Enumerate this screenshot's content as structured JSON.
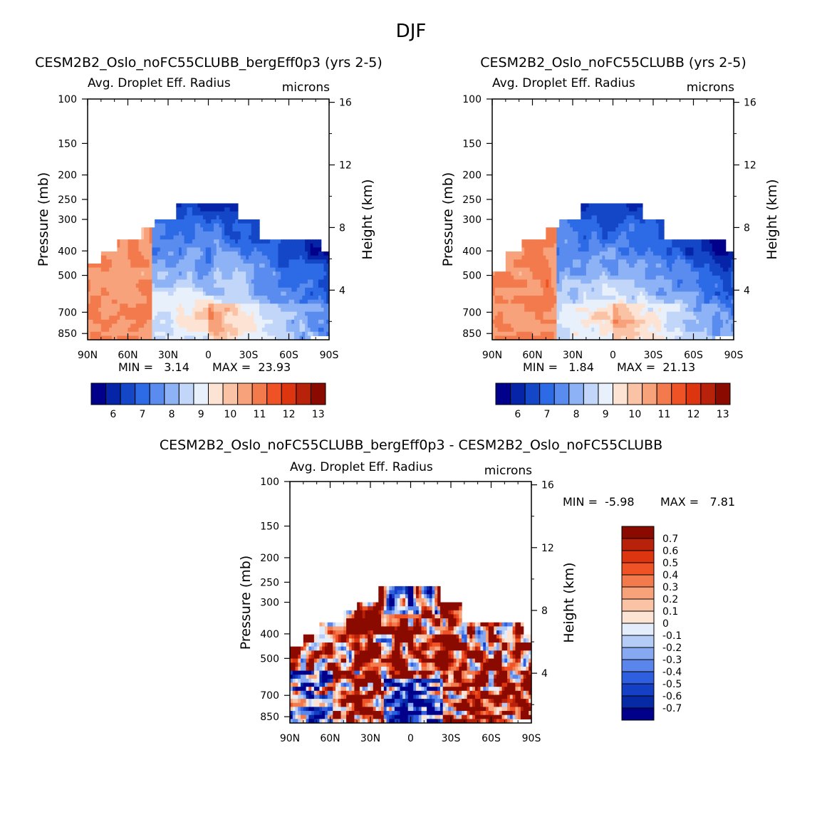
{
  "page_title": "DJF",
  "chart_data": [
    {
      "type": "heatmap",
      "title": "CESM2B2_Oslo_noFC55CLUBB_bergEff0p3 (yrs 2-5)",
      "subtitle_left": "Avg. Droplet Eff. Radius",
      "subtitle_right": "microns",
      "xlabel": "",
      "ylabel_left": "Pressure (mb)",
      "ylabel_right": "Height (km)",
      "x_tick_labels": [
        "90N",
        "60N",
        "30N",
        "0",
        "30S",
        "60S",
        "90S"
      ],
      "x_ticks": [
        90,
        60,
        30,
        0,
        -30,
        -60,
        -90
      ],
      "y_tick_labels": [
        "100",
        "150",
        "200",
        "250",
        "300",
        "400",
        "500",
        "700",
        "850"
      ],
      "y_ticks": [
        100,
        150,
        200,
        250,
        300,
        400,
        500,
        700,
        850
      ],
      "ylim": [
        100,
        1000
      ],
      "height_tick_labels": [
        "16",
        "12",
        "8",
        "4"
      ],
      "min_text": "MIN =   3.14",
      "max_text": "MAX =  23.93",
      "min": 3.14,
      "max": 23.93,
      "colorbar_labels": [
        "6",
        "7",
        "8",
        "9",
        "10",
        "11",
        "12",
        "13"
      ],
      "colorbar_levels": [
        6,
        7,
        8,
        9,
        10,
        11,
        12,
        13
      ],
      "colorbar_orientation": "horizontal"
    },
    {
      "type": "heatmap",
      "title": "CESM2B2_Oslo_noFC55CLUBB (yrs 2-5)",
      "subtitle_left": "Avg. Droplet Eff. Radius",
      "subtitle_right": "microns",
      "xlabel": "",
      "ylabel_left": "Pressure (mb)",
      "ylabel_right": "Height (km)",
      "x_tick_labels": [
        "90N",
        "60N",
        "30N",
        "0",
        "30S",
        "60S",
        "90S"
      ],
      "x_ticks": [
        90,
        60,
        30,
        0,
        -30,
        -60,
        -90
      ],
      "y_tick_labels": [
        "100",
        "150",
        "200",
        "250",
        "300",
        "400",
        "500",
        "700",
        "850"
      ],
      "y_ticks": [
        100,
        150,
        200,
        250,
        300,
        400,
        500,
        700,
        850
      ],
      "ylim": [
        100,
        1000
      ],
      "height_tick_labels": [
        "16",
        "12",
        "8",
        "4"
      ],
      "min_text": "MIN =   1.84",
      "max_text": "MAX =  21.13",
      "min": 1.84,
      "max": 21.13,
      "colorbar_labels": [
        "6",
        "7",
        "8",
        "9",
        "10",
        "11",
        "12",
        "13"
      ],
      "colorbar_levels": [
        6,
        7,
        8,
        9,
        10,
        11,
        12,
        13
      ],
      "colorbar_orientation": "horizontal"
    },
    {
      "type": "heatmap",
      "title": "CESM2B2_Oslo_noFC55CLUBB_bergEff0p3 - CESM2B2_Oslo_noFC55CLUBB",
      "subtitle_left": "Avg. Droplet Eff. Radius",
      "subtitle_right": "microns",
      "xlabel": "",
      "ylabel_left": "Pressure (mb)",
      "ylabel_right": "Height (km)",
      "x_tick_labels": [
        "90N",
        "60N",
        "30N",
        "0",
        "30S",
        "60S",
        "90S"
      ],
      "x_ticks": [
        90,
        60,
        30,
        0,
        -30,
        -60,
        -90
      ],
      "y_tick_labels": [
        "100",
        "150",
        "200",
        "250",
        "300",
        "400",
        "500",
        "700",
        "850"
      ],
      "y_ticks": [
        100,
        150,
        200,
        250,
        300,
        400,
        500,
        700,
        850
      ],
      "ylim": [
        100,
        1000
      ],
      "height_tick_labels": [
        "16",
        "12",
        "8",
        "4"
      ],
      "min_text": "MIN =  -5.98",
      "max_text": "MAX =   7.81",
      "min": -5.98,
      "max": 7.81,
      "colorbar_labels": [
        "0.7",
        "0.6",
        "0.5",
        "0.4",
        "0.3",
        "0.2",
        "0.1",
        "0",
        "-0.1",
        "-0.2",
        "-0.3",
        "-0.4",
        "-0.5",
        "-0.6",
        "-0.7"
      ],
      "colorbar_levels": [
        0.7,
        0.6,
        0.5,
        0.4,
        0.3,
        0.2,
        0.1,
        0,
        -0.1,
        -0.2,
        -0.3,
        -0.4,
        -0.5,
        -0.6,
        -0.7
      ],
      "colorbar_orientation": "vertical"
    }
  ],
  "colors": {
    "seq": [
      "#00008a",
      "#0624a8",
      "#1446c8",
      "#2d6ae6",
      "#5a8cf0",
      "#8db2f5",
      "#c1d6f8",
      "#e8f0fb",
      "#fde3d3",
      "#fbc3a5",
      "#f7a27a",
      "#f37a4d",
      "#ef5225",
      "#dc3510",
      "#b8210a",
      "#8a0a00"
    ],
    "div": [
      "#8a0a00",
      "#b8210a",
      "#dc3510",
      "#ef5225",
      "#f37a4d",
      "#f7a27a",
      "#fbc3a5",
      "#fde3d3",
      "#e3edfb",
      "#b4ccf6",
      "#86a9f1",
      "#5a86eb",
      "#2f5fde",
      "#153fc4",
      "#062aa5",
      "#00008a"
    ]
  }
}
